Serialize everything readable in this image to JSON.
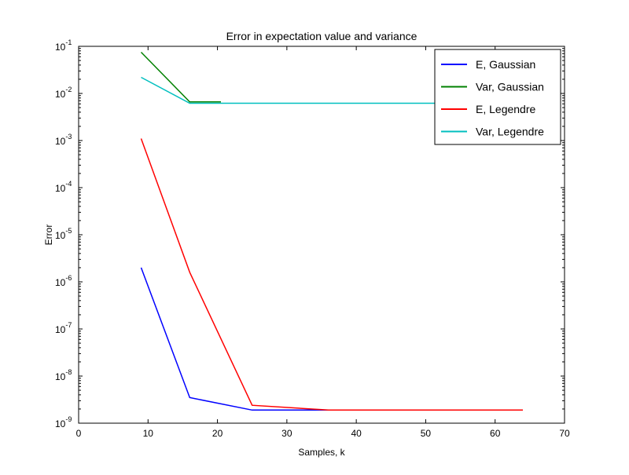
{
  "chart_data": {
    "type": "line",
    "title": "Error in expectation value and variance",
    "xlabel": "Samples, k",
    "ylabel": "Error",
    "xlim": [
      0,
      70
    ],
    "ylim": [
      1e-09,
      0.1
    ],
    "yscale": "log",
    "x_ticks": [
      0,
      10,
      20,
      30,
      40,
      50,
      60,
      70
    ],
    "y_ticks": [
      {
        "value": 1e-09,
        "base": "10",
        "exp": "-9"
      },
      {
        "value": 1e-08,
        "base": "10",
        "exp": "-8"
      },
      {
        "value": 1e-07,
        "base": "10",
        "exp": "-7"
      },
      {
        "value": 1e-06,
        "base": "10",
        "exp": "-6"
      },
      {
        "value": 1e-05,
        "base": "10",
        "exp": "-5"
      },
      {
        "value": 0.0001,
        "base": "10",
        "exp": "-4"
      },
      {
        "value": 0.001,
        "base": "10",
        "exp": "-3"
      },
      {
        "value": 0.01,
        "base": "10",
        "exp": "-2"
      },
      {
        "value": 0.1,
        "base": "10",
        "exp": "-1"
      }
    ],
    "grid": false,
    "legend_position": "top-right",
    "series": [
      {
        "name": "E, Gaussian",
        "color": "#0000ff",
        "x": [
          9,
          16,
          25,
          36,
          49,
          64
        ],
        "y": [
          2e-06,
          3.5e-09,
          1.9e-09,
          1.9e-09,
          1.9e-09,
          1.9e-09
        ]
      },
      {
        "name": "Var, Gaussian",
        "color": "#008000",
        "x": [
          9,
          16,
          20.5
        ],
        "y": [
          0.075,
          0.0066,
          0.0066
        ]
      },
      {
        "name": "E, Legendre",
        "color": "#ff0000",
        "x": [
          9,
          16,
          25,
          36,
          49,
          64
        ],
        "y": [
          0.0011,
          1.6e-06,
          2.4e-09,
          1.9e-09,
          1.9e-09,
          1.9e-09
        ]
      },
      {
        "name": "Var, Legendre",
        "color": "#00bfbf",
        "x": [
          9,
          16,
          25,
          36,
          49,
          64
        ],
        "y": [
          0.022,
          0.0062,
          0.0062,
          0.0062,
          0.0062,
          0.0062
        ]
      }
    ]
  }
}
